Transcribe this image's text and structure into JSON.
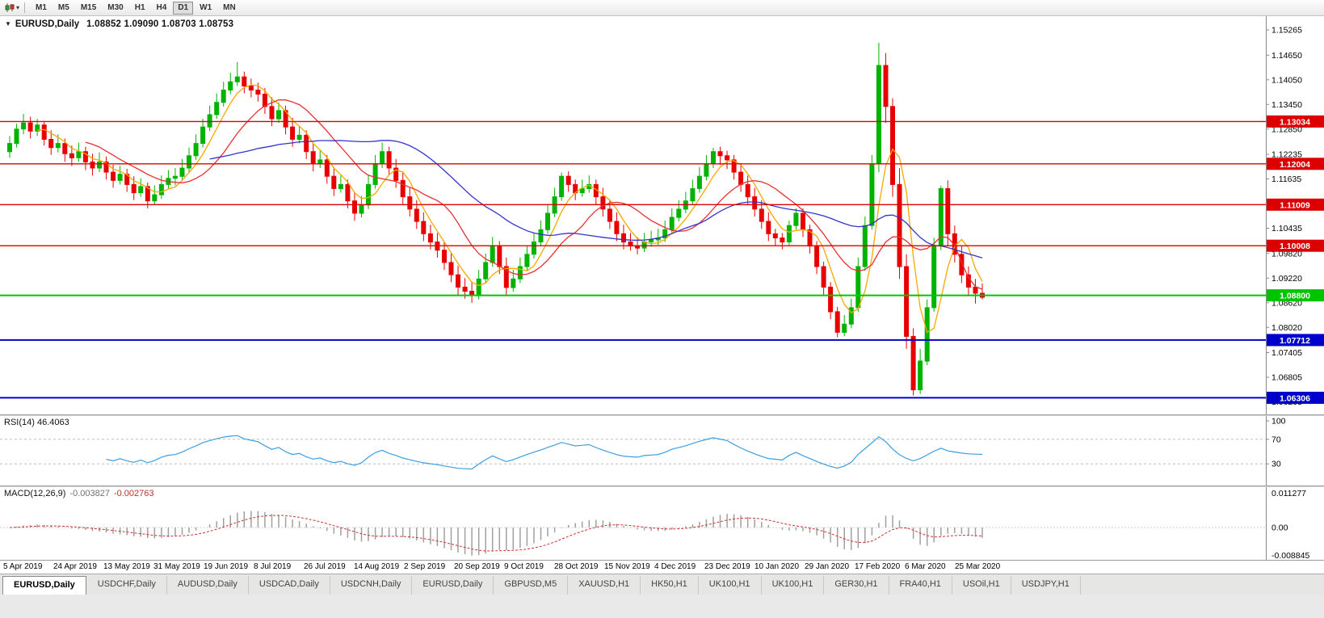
{
  "toolbar": {
    "timeframes": [
      "M1",
      "M5",
      "M15",
      "M30",
      "H1",
      "H4",
      "D1",
      "W1",
      "MN"
    ],
    "active_timeframe": "D1"
  },
  "chart_data": {
    "type": "candlestick",
    "title": "EURUSD,Daily",
    "ohlc_text": "1.08852 1.09090 1.08703 1.08753",
    "price_range": [
      1.059,
      1.156
    ],
    "y_ticks": [
      "1.15265",
      "1.14650",
      "1.14050",
      "1.13450",
      "1.12850",
      "1.12235",
      "1.11635",
      "1.10435",
      "1.09820",
      "1.09220",
      "1.08620",
      "1.08020",
      "1.07405",
      "1.06805",
      "1.06205"
    ],
    "x_labels": [
      "5 Apr 2019",
      "24 Apr 2019",
      "13 May 2019",
      "31 May 2019",
      "19 Jun 2019",
      "8 Jul 2019",
      "26 Jul 2019",
      "14 Aug 2019",
      "2 Sep 2019",
      "20 Sep 2019",
      "9 Oct 2019",
      "28 Oct 2019",
      "15 Nov 2019",
      "4 Dec 2019",
      "23 Dec 2019",
      "10 Jan 2020",
      "29 Jan 2020",
      "17 Feb 2020",
      "6 Mar 2020",
      "25 Mar 2020"
    ],
    "levels": [
      {
        "price": 1.13034,
        "label": "1.13034",
        "color": "#dd0000",
        "width": 1.4
      },
      {
        "price": 1.12004,
        "label": "1.12004",
        "color": "#dd0000",
        "width": 1.4
      },
      {
        "price": 1.11009,
        "label": "1.11009",
        "color": "#dd0000",
        "width": 1.4
      },
      {
        "price": 1.10008,
        "label": "1.10008",
        "color": "#dd0000",
        "width": 1.4
      },
      {
        "price": 1.088,
        "label": "1.08800",
        "color": "#00c400",
        "width": 2
      },
      {
        "price": 1.07712,
        "label": "1.07712",
        "color": "#0000cc",
        "width": 2
      },
      {
        "price": 1.06306,
        "label": "1.06306",
        "color": "#0000cc",
        "width": 2
      }
    ],
    "moving_averages": [
      {
        "name": "fast-ma",
        "period": 5,
        "color": "#f5a800"
      },
      {
        "name": "mid-ma",
        "period": 12,
        "color": "#e83030"
      },
      {
        "name": "slow-ma",
        "period": 30,
        "color": "#3434cc"
      }
    ],
    "candle_colors": {
      "up": "#00b300",
      "down": "#e80000"
    },
    "indicators": {
      "rsi": {
        "label": "RSI(14) 46.4063",
        "period": 14,
        "current": "46.4063",
        "axis_labels": [
          "100",
          "70",
          "30"
        ],
        "dashed_levels": [
          70,
          30
        ],
        "color": "#3c9fe0"
      },
      "macd": {
        "name": "MACD(12,26,9)",
        "main_value": "-0.003827",
        "signal_value": "-0.002763",
        "axis": [
          "0.011277",
          "0.00",
          "-0.008845"
        ],
        "histogram_color": "#a0a0a0",
        "signal_color": "#cc3333"
      }
    },
    "candles": [
      [
        1.123,
        1.1268,
        1.1215,
        1.125
      ],
      [
        1.125,
        1.1298,
        1.124,
        1.1285
      ],
      [
        1.1285,
        1.1322,
        1.1272,
        1.13
      ],
      [
        1.13,
        1.1315,
        1.1262,
        1.128
      ],
      [
        1.128,
        1.131,
        1.1268,
        1.1295
      ],
      [
        1.1295,
        1.1305,
        1.1245,
        1.126
      ],
      [
        1.126,
        1.1282,
        1.1222,
        1.124
      ],
      [
        1.124,
        1.1272,
        1.1228,
        1.125
      ],
      [
        1.125,
        1.1262,
        1.1205,
        1.1225
      ],
      [
        1.1225,
        1.1245,
        1.1195,
        1.1215
      ],
      [
        1.1215,
        1.1252,
        1.1205,
        1.123
      ],
      [
        1.123,
        1.1242,
        1.1185,
        1.1205
      ],
      [
        1.1205,
        1.1225,
        1.1172,
        1.119
      ],
      [
        1.119,
        1.1228,
        1.118,
        1.1205
      ],
      [
        1.1205,
        1.1218,
        1.1162,
        1.118
      ],
      [
        1.118,
        1.1198,
        1.1142,
        1.116
      ],
      [
        1.116,
        1.1195,
        1.115,
        1.1175
      ],
      [
        1.1175,
        1.1188,
        1.1132,
        1.115
      ],
      [
        1.115,
        1.117,
        1.1112,
        1.113
      ],
      [
        1.113,
        1.1165,
        1.112,
        1.1145
      ],
      [
        1.1145,
        1.1155,
        1.1092,
        1.111
      ],
      [
        1.111,
        1.1148,
        1.11,
        1.1125
      ],
      [
        1.1125,
        1.1172,
        1.1115,
        1.115
      ],
      [
        1.115,
        1.1185,
        1.114,
        1.1165
      ],
      [
        1.1165,
        1.119,
        1.1148,
        1.117
      ],
      [
        1.117,
        1.1212,
        1.116,
        1.119
      ],
      [
        1.119,
        1.124,
        1.118,
        1.122
      ],
      [
        1.122,
        1.1272,
        1.121,
        1.125
      ],
      [
        1.125,
        1.131,
        1.124,
        1.129
      ],
      [
        1.129,
        1.1342,
        1.128,
        1.132
      ],
      [
        1.132,
        1.1372,
        1.131,
        1.135
      ],
      [
        1.135,
        1.14,
        1.134,
        1.138
      ],
      [
        1.138,
        1.1422,
        1.137,
        1.14
      ],
      [
        1.14,
        1.1448,
        1.139,
        1.1412
      ],
      [
        1.1412,
        1.1425,
        1.1372,
        1.139
      ],
      [
        1.139,
        1.1408,
        1.1362,
        1.138
      ],
      [
        1.138,
        1.1398,
        1.1352,
        1.137
      ],
      [
        1.137,
        1.1385,
        1.1322,
        1.134
      ],
      [
        1.134,
        1.1362,
        1.1292,
        1.131
      ],
      [
        1.131,
        1.135,
        1.13,
        1.133
      ],
      [
        1.133,
        1.1342,
        1.1272,
        1.129
      ],
      [
        1.129,
        1.1312,
        1.1242,
        1.126
      ],
      [
        1.126,
        1.1292,
        1.125,
        1.127
      ],
      [
        1.127,
        1.1282,
        1.1212,
        1.123
      ],
      [
        1.123,
        1.1252,
        1.1182,
        1.12
      ],
      [
        1.12,
        1.1232,
        1.119,
        1.121
      ],
      [
        1.121,
        1.1222,
        1.1152,
        1.117
      ],
      [
        1.117,
        1.1192,
        1.1122,
        1.114
      ],
      [
        1.114,
        1.1172,
        1.113,
        1.115
      ],
      [
        1.115,
        1.1162,
        1.1092,
        1.111
      ],
      [
        1.111,
        1.1132,
        1.1062,
        1.108
      ],
      [
        1.108,
        1.1122,
        1.107,
        1.11
      ],
      [
        1.11,
        1.1172,
        1.109,
        1.115
      ],
      [
        1.115,
        1.1222,
        1.114,
        1.12
      ],
      [
        1.12,
        1.1252,
        1.119,
        1.123
      ],
      [
        1.123,
        1.1242,
        1.1172,
        1.119
      ],
      [
        1.119,
        1.1212,
        1.1142,
        1.116
      ],
      [
        1.116,
        1.1182,
        1.1102,
        1.112
      ],
      [
        1.112,
        1.1142,
        1.1072,
        1.109
      ],
      [
        1.109,
        1.1112,
        1.1042,
        1.106
      ],
      [
        1.106,
        1.1082,
        1.1012,
        1.103
      ],
      [
        1.103,
        1.1052,
        1.0992,
        1.101
      ],
      [
        1.101,
        1.1032,
        1.0972,
        1.099
      ],
      [
        1.099,
        1.1012,
        1.0942,
        1.096
      ],
      [
        1.096,
        1.0982,
        1.0912,
        1.093
      ],
      [
        1.093,
        1.0952,
        1.0882,
        1.09
      ],
      [
        1.09,
        1.0922,
        1.0872,
        1.089
      ],
      [
        1.089,
        1.0912,
        1.0862,
        1.088
      ],
      [
        1.088,
        1.0942,
        1.087,
        1.092
      ],
      [
        1.092,
        1.0982,
        1.091,
        1.096
      ],
      [
        1.096,
        1.1022,
        1.095,
        1.1
      ],
      [
        1.1,
        1.1012,
        1.0932,
        1.095
      ],
      [
        1.095,
        1.0972,
        1.0879,
        1.0899
      ],
      [
        1.0899,
        1.0942,
        1.0889,
        1.092
      ],
      [
        1.092,
        1.0972,
        1.091,
        1.095
      ],
      [
        1.095,
        1.1002,
        1.094,
        1.098
      ],
      [
        1.098,
        1.1032,
        1.097,
        1.101
      ],
      [
        1.101,
        1.1062,
        1.1,
        1.104
      ],
      [
        1.104,
        1.1102,
        1.103,
        1.108
      ],
      [
        1.108,
        1.1142,
        1.107,
        1.112
      ],
      [
        1.112,
        1.1179,
        1.111,
        1.117
      ],
      [
        1.117,
        1.1182,
        1.1132,
        1.115
      ],
      [
        1.115,
        1.1162,
        1.1112,
        1.113
      ],
      [
        1.113,
        1.1162,
        1.112,
        1.114
      ],
      [
        1.114,
        1.1172,
        1.113,
        1.115
      ],
      [
        1.115,
        1.1162,
        1.1102,
        1.112
      ],
      [
        1.112,
        1.1142,
        1.1072,
        1.109
      ],
      [
        1.109,
        1.1112,
        1.1042,
        1.106
      ],
      [
        1.106,
        1.1082,
        1.1012,
        1.103
      ],
      [
        1.103,
        1.1052,
        1.0992,
        1.101
      ],
      [
        1.101,
        1.1032,
        1.0989,
        1.1
      ],
      [
        1.1,
        1.1022,
        1.098,
        1.0995
      ],
      [
        1.0995,
        1.1032,
        1.0985,
        1.101
      ],
      [
        1.101,
        1.1037,
        1.0998,
        1.1015
      ],
      [
        1.1015,
        1.1042,
        1.1003,
        1.102
      ],
      [
        1.102,
        1.1062,
        1.101,
        1.104
      ],
      [
        1.104,
        1.1092,
        1.103,
        1.107
      ],
      [
        1.107,
        1.1112,
        1.106,
        1.109
      ],
      [
        1.109,
        1.1132,
        1.108,
        1.111
      ],
      [
        1.111,
        1.1162,
        1.11,
        1.114
      ],
      [
        1.114,
        1.1192,
        1.113,
        1.117
      ],
      [
        1.117,
        1.1222,
        1.116,
        1.12
      ],
      [
        1.12,
        1.1239,
        1.119,
        1.123
      ],
      [
        1.123,
        1.1242,
        1.1198,
        1.122
      ],
      [
        1.122,
        1.1232,
        1.1188,
        1.121
      ],
      [
        1.121,
        1.1222,
        1.1162,
        1.118
      ],
      [
        1.118,
        1.1202,
        1.1132,
        1.115
      ],
      [
        1.115,
        1.1172,
        1.1102,
        1.112
      ],
      [
        1.112,
        1.1142,
        1.1072,
        1.109
      ],
      [
        1.109,
        1.1112,
        1.1042,
        1.106
      ],
      [
        1.106,
        1.1082,
        1.1012,
        1.103
      ],
      [
        1.103,
        1.1042,
        1.1002,
        1.102
      ],
      [
        1.102,
        1.1032,
        1.0992,
        1.101
      ],
      [
        1.101,
        1.1062,
        1.1,
        1.105
      ],
      [
        1.105,
        1.1092,
        1.104,
        1.108
      ],
      [
        1.108,
        1.1092,
        1.1022,
        1.104
      ],
      [
        1.104,
        1.1052,
        1.0982,
        1.1
      ],
      [
        1.1,
        1.1012,
        1.0932,
        1.095
      ],
      [
        1.095,
        1.0962,
        1.0882,
        1.09
      ],
      [
        1.09,
        1.0912,
        1.0822,
        1.084
      ],
      [
        1.084,
        1.0852,
        1.0778,
        1.079
      ],
      [
        1.079,
        1.0832,
        1.078,
        1.081
      ],
      [
        1.081,
        1.0872,
        1.08,
        1.085
      ],
      [
        1.085,
        1.0972,
        1.084,
        1.095
      ],
      [
        1.095,
        1.1072,
        1.094,
        1.105
      ],
      [
        1.105,
        1.1222,
        1.104,
        1.12
      ],
      [
        1.12,
        1.1495,
        1.118,
        1.144
      ],
      [
        1.144,
        1.147,
        1.13,
        1.134
      ],
      [
        1.134,
        1.136,
        1.112,
        1.115
      ],
      [
        1.115,
        1.119,
        1.092,
        1.095
      ],
      [
        1.095,
        1.098,
        1.075,
        1.078
      ],
      [
        1.078,
        1.08,
        1.0636,
        1.065
      ],
      [
        1.065,
        1.075,
        1.064,
        1.072
      ],
      [
        1.072,
        1.087,
        1.071,
        1.085
      ],
      [
        1.085,
        1.102,
        1.084,
        1.1
      ],
      [
        1.1,
        1.1147,
        1.099,
        1.114
      ],
      [
        1.114,
        1.116,
        1.1,
        1.103
      ],
      [
        1.103,
        1.105,
        1.096,
        1.098
      ],
      [
        1.098,
        1.1,
        1.091,
        1.093
      ],
      [
        1.093,
        1.095,
        1.088,
        1.09
      ],
      [
        1.09,
        1.092,
        1.086,
        1.0885
      ],
      [
        1.08852,
        1.0909,
        1.08703,
        1.08753
      ]
    ]
  },
  "tabs": {
    "labels": [
      "EURUSD,Daily",
      "USDCHF,Daily",
      "AUDUSD,Daily",
      "USDCAD,Daily",
      "USDCNH,Daily",
      "EURUSD,Daily",
      "GBPUSD,M5",
      "XAUUSD,H1",
      "HK50,H1",
      "UK100,H1",
      "UK100,H1",
      "GER30,H1",
      "FRA40,H1",
      "USOil,H1",
      "USDJPY,H1"
    ],
    "active_index": 0
  }
}
